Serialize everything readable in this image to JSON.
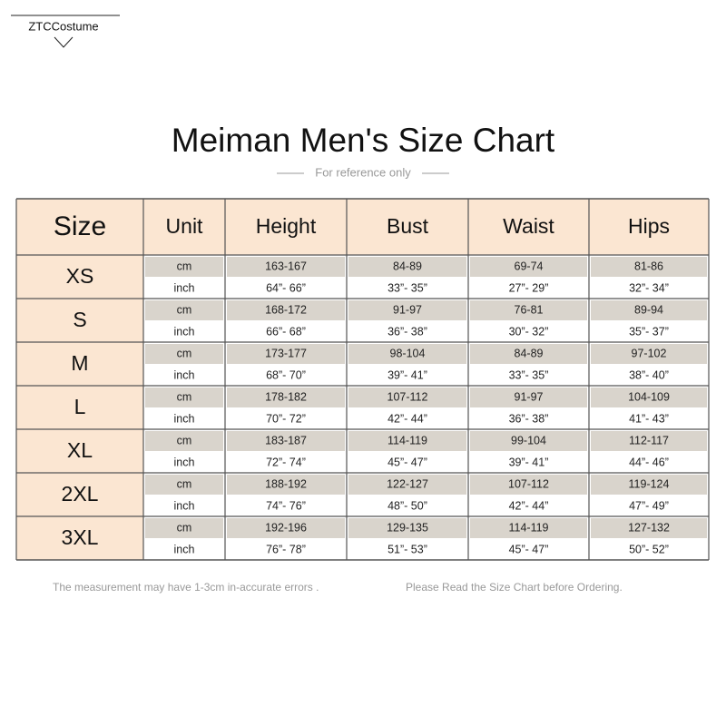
{
  "brand": "ZTCCostume",
  "title": "Meiman Men's Size Chart",
  "subtitle": "For reference only",
  "table": {
    "headers": [
      "Size",
      "Unit",
      "Height",
      "Bust",
      "Waist",
      "Hips"
    ],
    "rows": [
      {
        "size": "XS",
        "units": [
          [
            "cm",
            "163-167",
            "84-89",
            "69-74",
            "81-86"
          ],
          [
            "inch",
            "64”- 66”",
            "33”- 35”",
            "27”- 29”",
            "32”- 34”"
          ]
        ]
      },
      {
        "size": "S",
        "units": [
          [
            "cm",
            "168-172",
            "91-97",
            "76-81",
            "89-94"
          ],
          [
            "inch",
            "66”- 68”",
            "36”- 38”",
            "30”- 32”",
            "35”- 37”"
          ]
        ]
      },
      {
        "size": "M",
        "units": [
          [
            "cm",
            "173-177",
            "98-104",
            "84-89",
            "97-102"
          ],
          [
            "inch",
            "68”- 70”",
            "39”- 41”",
            "33”- 35”",
            "38”- 40”"
          ]
        ]
      },
      {
        "size": "L",
        "units": [
          [
            "cm",
            "178-182",
            "107-112",
            "91-97",
            "104-109"
          ],
          [
            "inch",
            "70”- 72”",
            "42”- 44”",
            "36”- 38”",
            "41”- 43”"
          ]
        ]
      },
      {
        "size": "XL",
        "units": [
          [
            "cm",
            "183-187",
            "114-119",
            "99-104",
            "112-117"
          ],
          [
            "inch",
            "72”- 74”",
            "45”- 47”",
            "39”- 41”",
            "44”- 46”"
          ]
        ]
      },
      {
        "size": "2XL",
        "units": [
          [
            "cm",
            "188-192",
            "122-127",
            "107-112",
            "119-124"
          ],
          [
            "inch",
            "74”- 76”",
            "48”- 50”",
            "42”- 44”",
            "47”- 49”"
          ]
        ]
      },
      {
        "size": "3XL",
        "units": [
          [
            "cm",
            "192-196",
            "129-135",
            "114-119",
            "127-132"
          ],
          [
            "inch",
            "76”- 78”",
            "51”- 53”",
            "45”- 47”",
            "50”- 52”"
          ]
        ]
      }
    ]
  },
  "footer": [
    "The measurement may have 1-3cm in-accurate errors .",
    "Please Read the Size Chart before Ordering."
  ]
}
